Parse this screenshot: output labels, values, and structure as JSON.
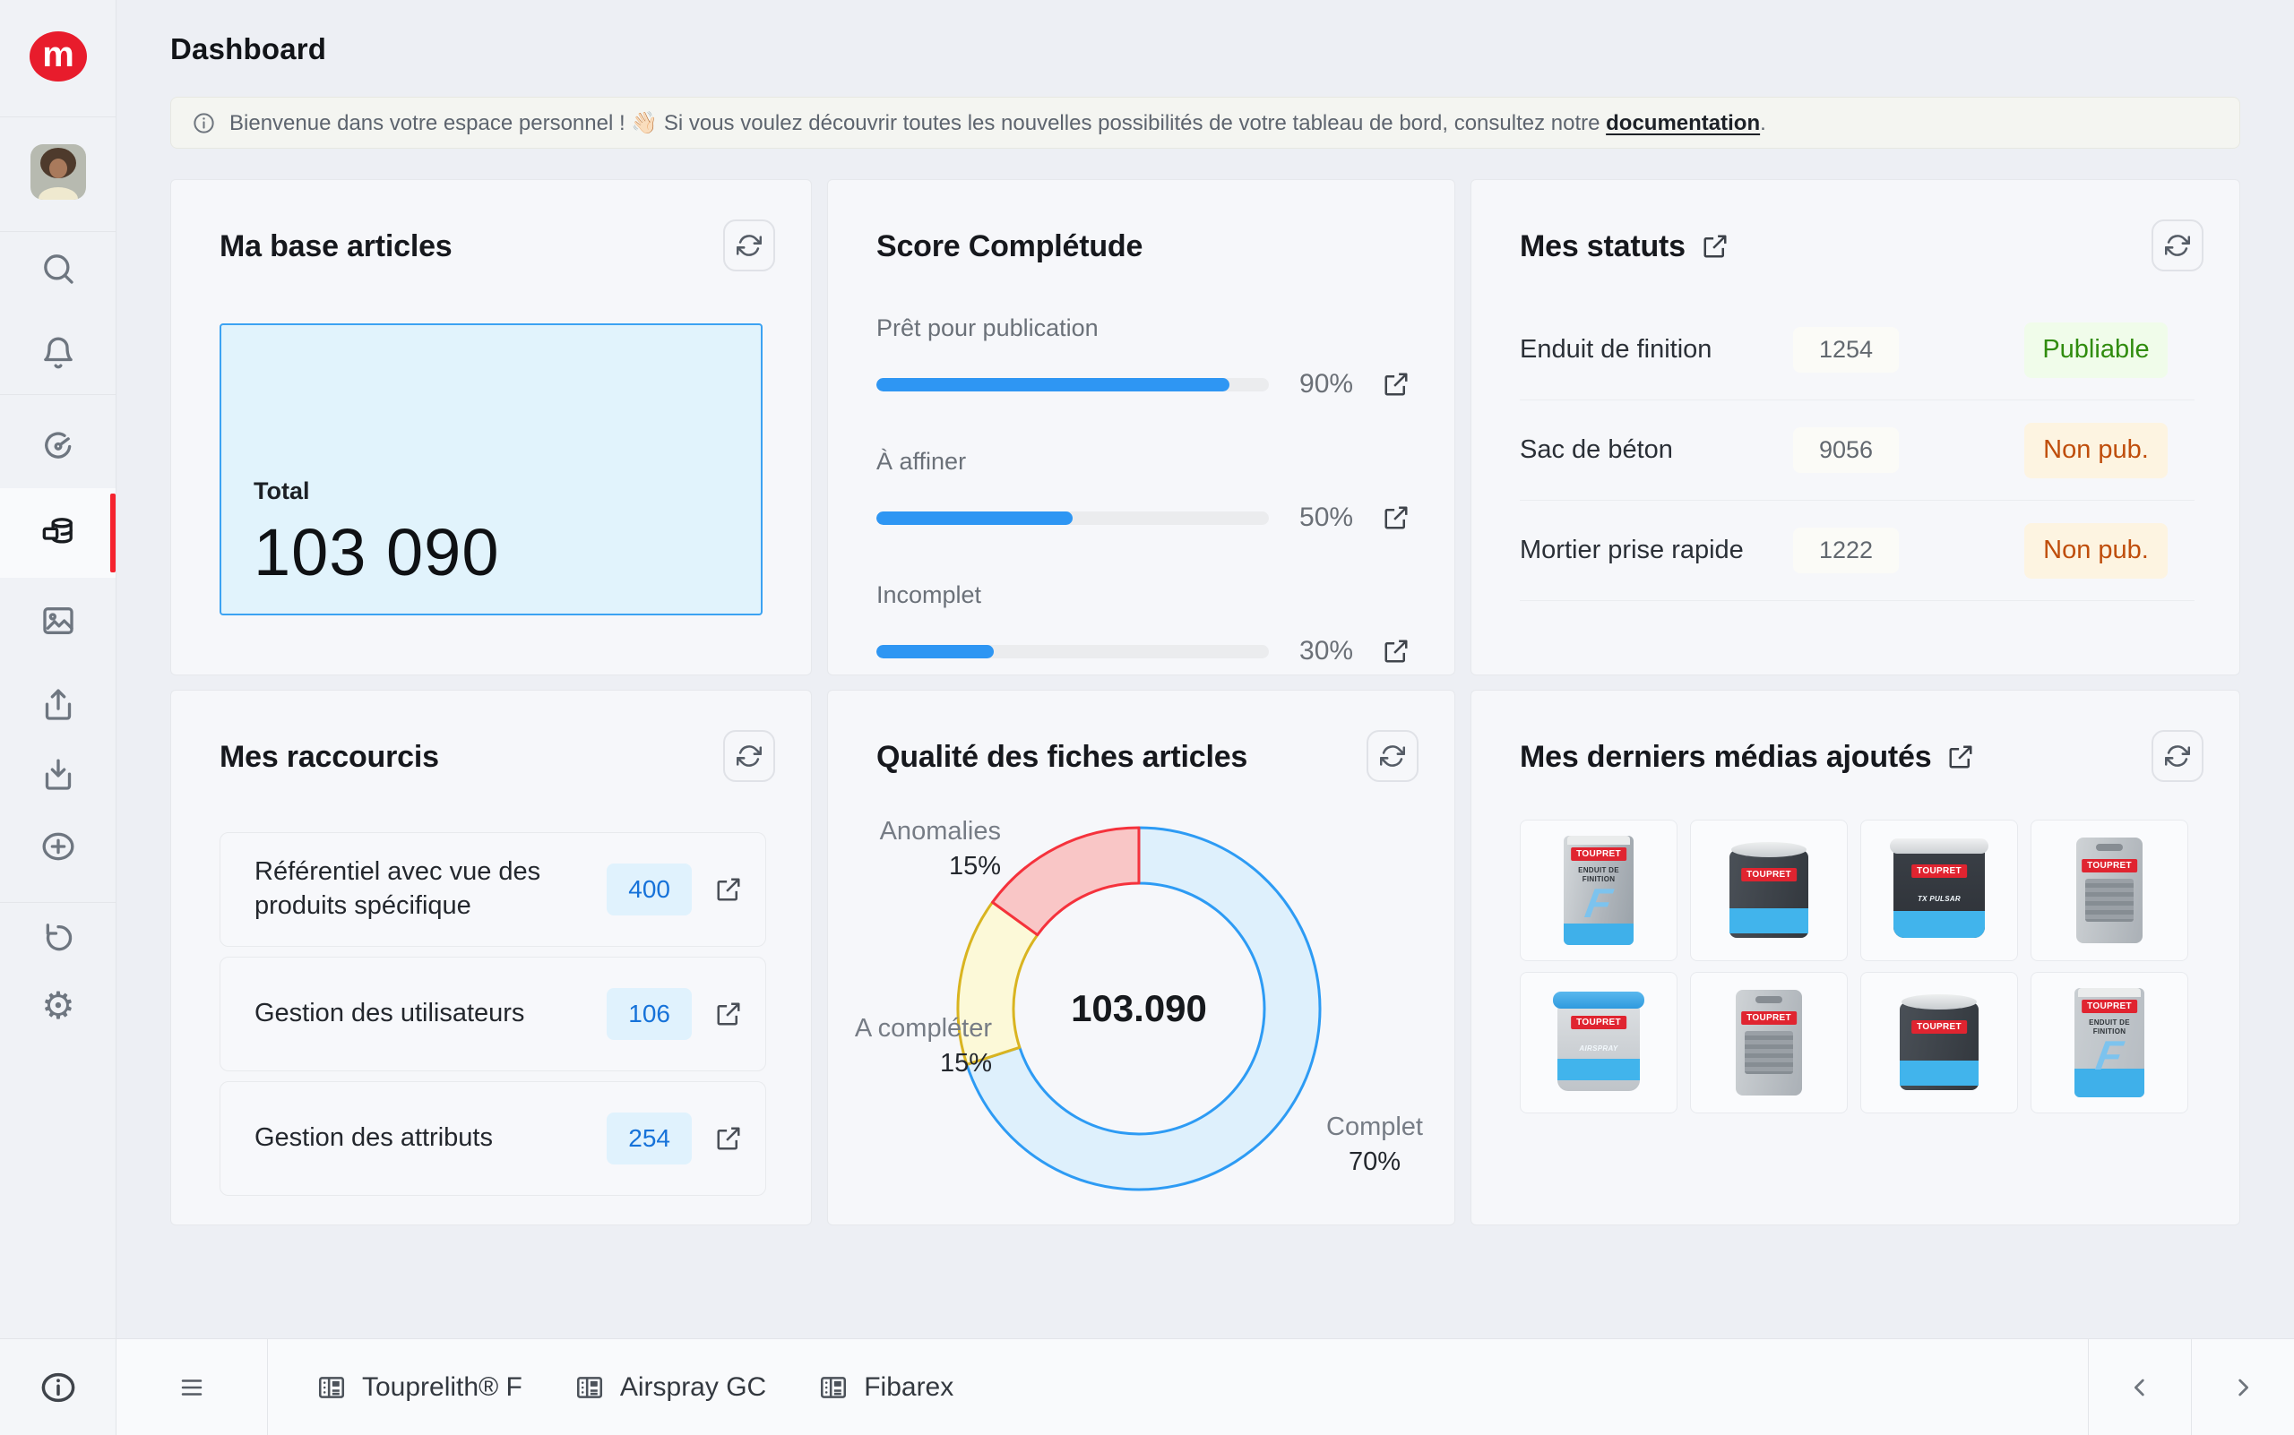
{
  "app": {
    "logo_letter": "m",
    "accent_red": "#e81c2c",
    "accent_blue": "#2e96f3"
  },
  "sidebar": {
    "items": [
      "search",
      "notifications",
      "dashboard",
      "articles",
      "media",
      "export",
      "import",
      "add",
      "history",
      "settings"
    ],
    "active_item": "articles",
    "info_item": "info"
  },
  "header": {
    "title": "Dashboard"
  },
  "banner": {
    "pre": "Bienvenue dans votre espace personnel ! 👋🏻 Si vous voulez découvrir toutes les nouvelles possibilités de votre tableau de bord, consultez notre ",
    "link": "documentation",
    "post": "."
  },
  "cards": {
    "base": {
      "title": "Ma base articles",
      "total_label": "Total",
      "total_value": "103 090"
    },
    "score": {
      "title": "Score Complétude",
      "rows": [
        {
          "label": "Prêt pour publication",
          "pct": 90,
          "pct_label": "90%"
        },
        {
          "label": "À affiner",
          "pct": 50,
          "pct_label": "50%"
        },
        {
          "label": "Incomplet",
          "pct": 30,
          "pct_label": "30%"
        }
      ]
    },
    "statuts": {
      "title": "Mes statuts",
      "rows": [
        {
          "name": "Enduit de finition",
          "count": "1254",
          "status": "Publiable",
          "tone": "green"
        },
        {
          "name": "Sac de béton",
          "count": "9056",
          "status": "Non pub.",
          "tone": "orange"
        },
        {
          "name": "Mortier prise rapide",
          "count": "1222",
          "status": "Non pub.",
          "tone": "orange"
        }
      ]
    },
    "raccourcis": {
      "title": "Mes raccourcis",
      "rows": [
        {
          "label": "Référentiel avec vue des produits spécifique",
          "count": "400"
        },
        {
          "label": "Gestion des utilisateurs",
          "count": "106"
        },
        {
          "label": "Gestion des attributs",
          "count": "254"
        }
      ]
    },
    "qualite": {
      "title": "Qualité des fiches articles"
    },
    "medias": {
      "title": "Mes derniers médias ajoutés",
      "items": [
        {
          "variant": "bag",
          "brand": "TOUPRET",
          "line1": "ENDUIT DE",
          "line2": "FINITION",
          "letter": "F"
        },
        {
          "variant": "can",
          "brand": "TOUPRET"
        },
        {
          "variant": "bucket-dark",
          "brand": "TOUPRET",
          "line1": "TX PULSAR"
        },
        {
          "variant": "pouch",
          "brand": "TOUPRET"
        },
        {
          "variant": "bucket-light",
          "brand": "TOUPRET",
          "line1": "AIRSPRAY"
        },
        {
          "variant": "pouch",
          "brand": "TOUPRET"
        },
        {
          "variant": "can",
          "brand": "TOUPRET"
        },
        {
          "variant": "bag-blue",
          "brand": "TOUPRET",
          "line1": "ENDUIT DE",
          "line2": "FINITION",
          "letter": "F"
        }
      ]
    }
  },
  "footer": {
    "tabs": [
      "Touprelith® F",
      "Airspray GC",
      "Fibarex"
    ]
  },
  "chart_data": {
    "type": "pie",
    "donut": true,
    "title": "Qualité des fiches articles",
    "center_label": "103.090",
    "legend_position": "around",
    "segments": [
      {
        "label": "Complet",
        "value": 70,
        "pct_label": "70%",
        "fill": "#def0fc",
        "stroke": "#2d9bf4"
      },
      {
        "label": "A compléter",
        "value": 15,
        "pct_label": "15%",
        "fill": "#fcf9d8",
        "stroke": "#d9b420"
      },
      {
        "label": "Anomalies",
        "value": 15,
        "pct_label": "15%",
        "fill": "#f9c6c6",
        "stroke": "#f5323c"
      }
    ]
  },
  "colors": {
    "page_bg": "#edeff4",
    "card_bg": "#f6f7fa",
    "border": "#e6e8ec",
    "badge_green_bg": "#f0fcea",
    "badge_green_text": "#308c0e",
    "badge_orange_bg": "#fdf4e1",
    "badge_orange_text": "#bf4d0b",
    "count_badge_bg": "#e0f2fd",
    "count_badge_text": "#1672d9",
    "total_box_bg": "#e1f3fc",
    "total_box_border": "#3ba2f2"
  }
}
